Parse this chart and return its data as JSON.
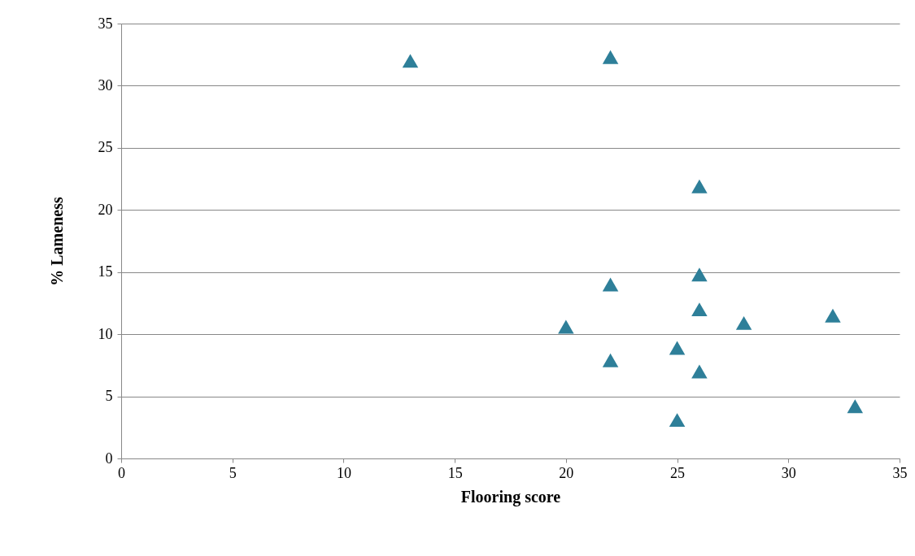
{
  "chart_data": {
    "type": "scatter",
    "xlabel": "Flooring score",
    "ylabel": "% Lameness",
    "x": [
      13,
      22,
      26,
      26,
      22,
      26,
      28,
      32,
      20,
      25,
      22,
      26,
      25,
      33
    ],
    "series": [
      {
        "color": "#2e7f99",
        "values": [
          32,
          32.3,
          21.9,
          14.8,
          14,
          12,
          10.9,
          11.5,
          10.6,
          8.9,
          7.9,
          7,
          3.1,
          4.2
        ]
      }
    ],
    "xlim": [
      0,
      35
    ],
    "xticks": [
      0,
      5,
      10,
      15,
      20,
      25,
      30,
      35
    ],
    "ylim": [
      0,
      35
    ],
    "yticks": [
      0,
      5,
      10,
      15,
      20,
      25,
      30,
      35
    ],
    "grid": "y",
    "marker": "triangle"
  }
}
